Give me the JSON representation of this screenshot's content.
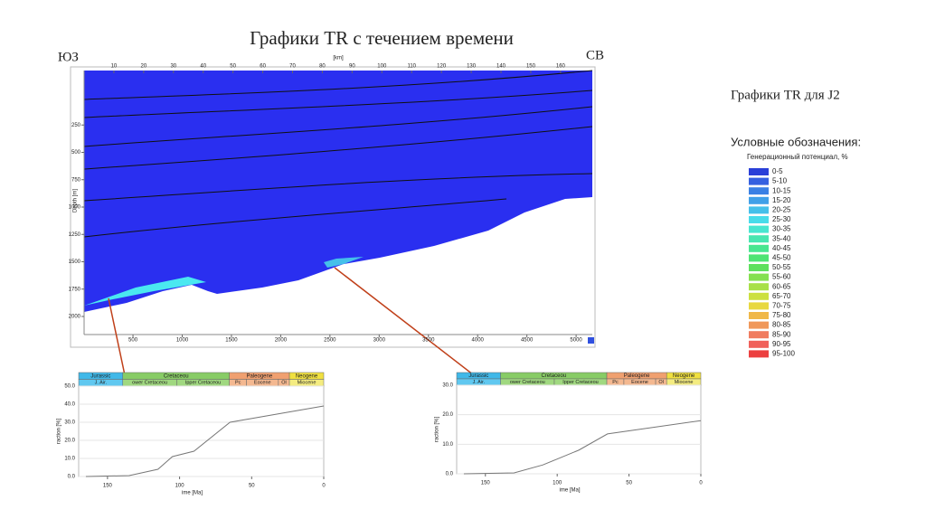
{
  "title": "Графики TR с течением времени",
  "left_label": "ЮЗ",
  "right_label": "СВ",
  "side_title": "Графики TR для J2",
  "legend": {
    "title": "Условные обозначения:",
    "subtitle": "Генерационный потенциал, %",
    "items": [
      {
        "label": "0-5",
        "color": "#2a3fd8"
      },
      {
        "label": "5-10",
        "color": "#3560e0"
      },
      {
        "label": "10-15",
        "color": "#3a80e4"
      },
      {
        "label": "15-20",
        "color": "#40a0e8"
      },
      {
        "label": "20-25",
        "color": "#45c0ea"
      },
      {
        "label": "25-30",
        "color": "#48dcea"
      },
      {
        "label": "30-35",
        "color": "#48e6d0"
      },
      {
        "label": "35-40",
        "color": "#48e6b0"
      },
      {
        "label": "40-45",
        "color": "#48e690"
      },
      {
        "label": "45-50",
        "color": "#4ee474"
      },
      {
        "label": "50-55",
        "color": "#5ee05e"
      },
      {
        "label": "55-60",
        "color": "#84e050"
      },
      {
        "label": "60-65",
        "color": "#a8e048"
      },
      {
        "label": "65-70",
        "color": "#cce040"
      },
      {
        "label": "70-75",
        "color": "#e8d840"
      },
      {
        "label": "75-80",
        "color": "#f0b848"
      },
      {
        "label": "80-85",
        "color": "#f0985a"
      },
      {
        "label": "85-90",
        "color": "#f07c60"
      },
      {
        "label": "90-95",
        "color": "#f0605a"
      },
      {
        "label": "95-100",
        "color": "#ec4040"
      }
    ]
  },
  "section": {
    "unit_label": "[km]",
    "depth_label": "Depth [m]",
    "top_ticks": [
      10,
      20,
      30,
      40,
      50,
      60,
      70,
      80,
      90,
      100,
      110,
      120,
      130,
      140,
      150,
      160
    ],
    "yticks": [
      250,
      500,
      750,
      1000,
      1250,
      1500,
      1750,
      2000
    ],
    "xticks": [
      500,
      1000,
      1500,
      2000,
      2500,
      3000,
      3500,
      4000,
      4500,
      5000
    ]
  },
  "chart_data": [
    {
      "type": "line",
      "x_label": "ime [Ma]",
      "y_label": "raction [%]",
      "periods": [
        "Jurassic",
        "Cretaceou",
        "Paleogene",
        "Neogene"
      ],
      "epochs": [
        "J. Air.",
        "ower Cretaceou",
        "Ipper Cretaceou",
        "Pc",
        "Eocene",
        "Ol",
        "Miocene"
      ],
      "x": [
        165,
        135,
        115,
        105,
        90,
        65,
        0
      ],
      "values": [
        0,
        0.5,
        4,
        11,
        14,
        30,
        39
      ],
      "color": "#777777",
      "xlim": [
        170,
        0
      ],
      "xticks": [
        150,
        100,
        50,
        0
      ],
      "ylim": [
        0,
        50
      ],
      "yticks": [
        {
          "value": 0,
          "label": "0.0"
        },
        {
          "value": 10,
          "label": "10.0"
        },
        {
          "value": 20,
          "label": "20.0"
        },
        {
          "value": 30,
          "label": "30.0"
        },
        {
          "value": 40,
          "label": "40.0"
        },
        {
          "value": 50,
          "label": "50.0"
        }
      ],
      "grid": true
    },
    {
      "type": "line",
      "x_label": "ime [Ma]",
      "y_label": "raction [%]",
      "periods": [
        "Jurassic",
        "Cretaceou",
        "Paleogene",
        "Neogene"
      ],
      "epochs": [
        "J. Air.",
        "ower Cretaceou",
        "Ipper Cretaceou",
        "Pc",
        "Eocene",
        "Ol",
        "Miocene"
      ],
      "x": [
        165,
        130,
        110,
        100,
        85,
        65,
        0
      ],
      "values": [
        0,
        0.3,
        3,
        5,
        8,
        13.5,
        18
      ],
      "color": "#777777",
      "xlim": [
        170,
        0
      ],
      "xticks": [
        150,
        100,
        50,
        0
      ],
      "ylim": [
        0,
        30
      ],
      "yticks": [
        {
          "value": 0,
          "label": "0.0"
        },
        {
          "value": 10,
          "label": "10.0"
        },
        {
          "value": 20,
          "label": "20.0"
        },
        {
          "value": 30,
          "label": "30.0"
        }
      ],
      "grid": true
    }
  ]
}
